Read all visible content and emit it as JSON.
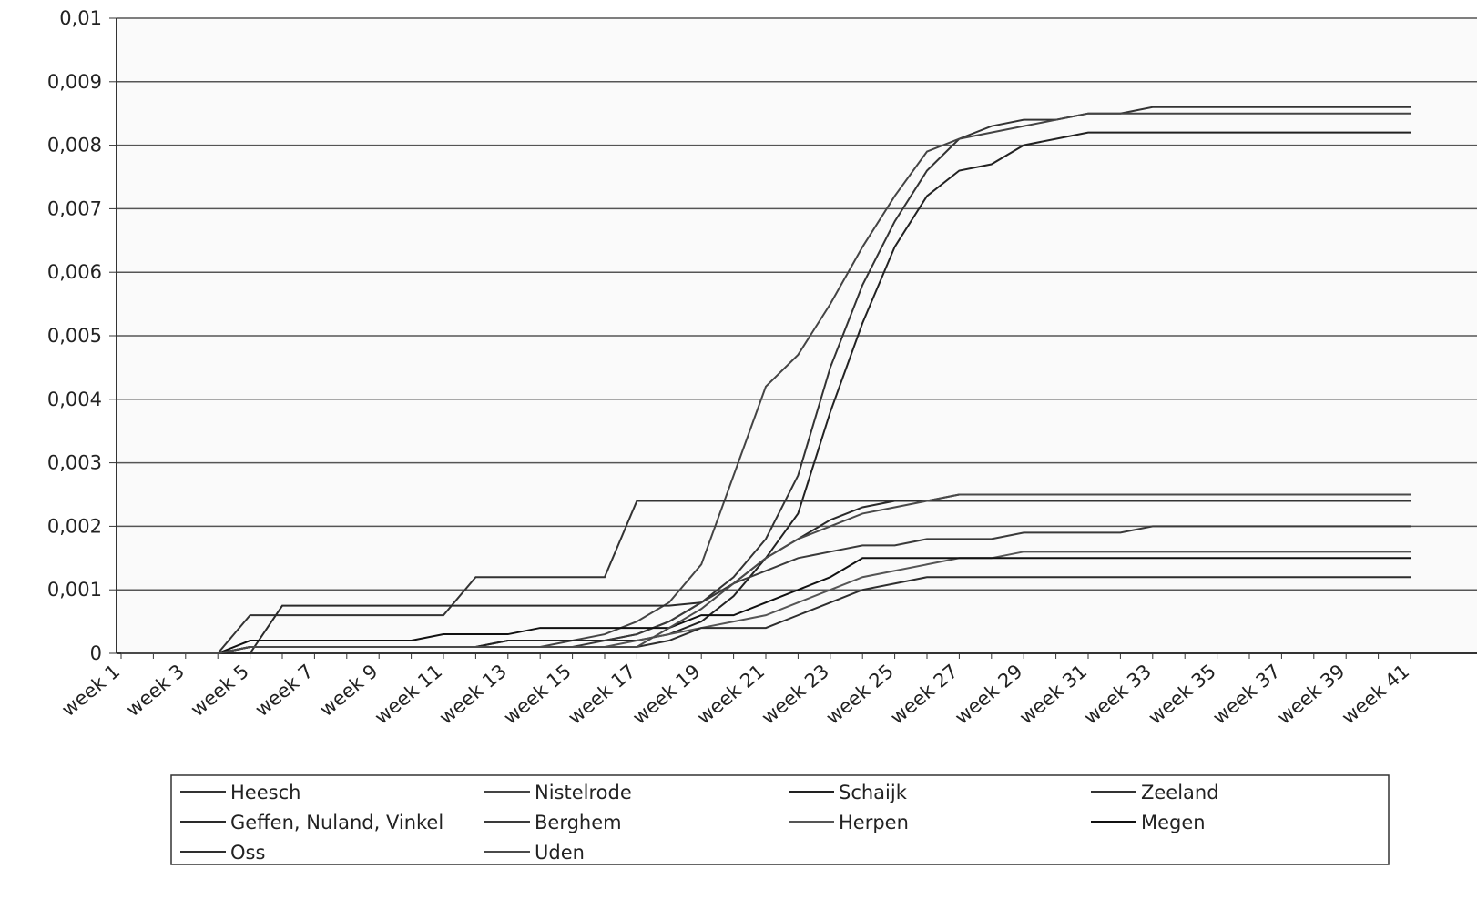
{
  "chart_data": {
    "type": "line",
    "categories": [
      "week 1",
      null,
      "week 3",
      null,
      "week 5",
      null,
      "week 7",
      null,
      "week 9",
      null,
      "week 11",
      null,
      "week 13",
      null,
      "week 15",
      null,
      "week 17",
      null,
      "week 19",
      null,
      "week 21",
      null,
      "week 23",
      null,
      "week 25",
      null,
      "week 27",
      null,
      "week 29",
      null,
      "week 31",
      null,
      "week 33",
      null,
      "week 35",
      null,
      "week 37",
      null,
      "week 39",
      null,
      "week 41"
    ],
    "ylim": [
      0,
      0.01
    ],
    "yticks": [
      0,
      {
        "value": 0.001,
        "label": "0,001"
      },
      {
        "value": 0.002,
        "label": "0,002"
      },
      {
        "value": 0.003,
        "label": "0,003"
      },
      {
        "value": 0.004,
        "label": "0,004"
      },
      {
        "value": 0.005,
        "label": "0,005"
      },
      {
        "value": 0.006,
        "label": "0,006"
      },
      {
        "value": 0.007,
        "label": "0,007"
      },
      {
        "value": 0.008,
        "label": "0,008"
      },
      {
        "value": 0.009,
        "label": "0,009"
      },
      {
        "value": 0.01,
        "label": "0,01"
      }
    ],
    "grid": true,
    "series": [
      {
        "name": "Heesch",
        "color": "#333333",
        "values": [
          0,
          0,
          0,
          0,
          0.0001,
          0.0001,
          0.0001,
          0.0001,
          0.0001,
          0.0001,
          0.0001,
          0.0001,
          0.0002,
          0.0002,
          0.0002,
          0.0002,
          0.0003,
          0.0005,
          0.0008,
          0.0012,
          0.0018,
          0.0028,
          0.0045,
          0.0058,
          0.0068,
          0.0076,
          0.0081,
          0.0083,
          0.0084,
          0.0084,
          0.0085,
          0.0085,
          0.0086,
          0.0086,
          0.0086,
          0.0086,
          0.0086,
          0.0086,
          0.0086,
          0.0086,
          0.0086
        ]
      },
      {
        "name": "Nistelrode",
        "color": "#444444",
        "values": [
          0,
          0,
          0,
          0,
          0.0001,
          0.0001,
          0.0001,
          0.0001,
          0.0001,
          0.0001,
          0.0001,
          0.0001,
          0.0001,
          0.0001,
          0.0002,
          0.0003,
          0.0005,
          0.0008,
          0.0014,
          0.0028,
          0.0042,
          0.0047,
          0.0055,
          0.0064,
          0.0072,
          0.0079,
          0.0081,
          0.0082,
          0.0083,
          0.0084,
          0.0085,
          0.0085,
          0.0085,
          0.0085,
          0.0085,
          0.0085,
          0.0085,
          0.0085,
          0.0085,
          0.0085,
          0.0085
        ]
      },
      {
        "name": "Schaijk",
        "color": "#222222",
        "values": [
          0,
          0,
          0,
          0,
          0.0001,
          0.0001,
          0.0001,
          0.0001,
          0.0001,
          0.0001,
          0.0001,
          0.0001,
          0.0002,
          0.0002,
          0.0002,
          0.0002,
          0.0002,
          0.0003,
          0.0005,
          0.0009,
          0.0015,
          0.0022,
          0.0038,
          0.0052,
          0.0064,
          0.0072,
          0.0076,
          0.0077,
          0.008,
          0.0081,
          0.0082,
          0.0082,
          0.0082,
          0.0082,
          0.0082,
          0.0082,
          0.0082,
          0.0082,
          0.0082,
          0.0082,
          0.0082
        ]
      },
      {
        "name": "Zeeland",
        "color": "#333333",
        "values": [
          0,
          0,
          0,
          0,
          0.0006,
          0.0006,
          0.0006,
          0.0006,
          0.0006,
          0.0006,
          0.0006,
          0.0012,
          0.0012,
          0.0012,
          0.0012,
          0.0012,
          0.0024,
          0.0024,
          0.0024,
          0.0024,
          0.0024,
          0.0024,
          0.0024,
          0.0024,
          0.0024,
          0.0024,
          0.0024,
          0.0024,
          0.0024,
          0.0024,
          0.0024,
          0.0024,
          0.0024,
          0.0024,
          0.0024,
          0.0024,
          0.0024,
          0.0024,
          0.0024,
          0.0024,
          0.0024
        ]
      },
      {
        "name": "Geffen, Nuland, Vinkel",
        "color": "#2a2a2a",
        "values": [
          0,
          0,
          0,
          0,
          0,
          0.00075,
          0.00075,
          0.00075,
          0.00075,
          0.00075,
          0.00075,
          0.00075,
          0.00075,
          0.00075,
          0.00075,
          0.00075,
          0.00075,
          0.00075,
          0.0008,
          0.0011,
          0.0015,
          0.0018,
          0.0021,
          0.0023,
          0.0024,
          0.0024,
          0.0025,
          0.0025,
          0.0025,
          0.0025,
          0.0025,
          0.0025,
          0.0025,
          0.0025,
          0.0025,
          0.0025,
          0.0025,
          0.0025,
          0.0025,
          0.0025,
          0.0025
        ]
      },
      {
        "name": "Berghem",
        "color": "#3a3a3a",
        "values": [
          0,
          0,
          0,
          0,
          0.0001,
          0.0001,
          0.0001,
          0.0001,
          0.0001,
          0.0001,
          0.0001,
          0.0001,
          0.0001,
          0.0001,
          0.0001,
          0.0002,
          0.0003,
          0.0005,
          0.0008,
          0.0011,
          0.0013,
          0.0015,
          0.0016,
          0.0017,
          0.0017,
          0.0018,
          0.0018,
          0.0018,
          0.0019,
          0.0019,
          0.0019,
          0.0019,
          0.002,
          0.002,
          0.002,
          0.002,
          0.002,
          0.002,
          0.002,
          0.002,
          0.002
        ]
      },
      {
        "name": "Herpen",
        "color": "#555555",
        "values": [
          0,
          0,
          0,
          0,
          0.0001,
          0.0001,
          0.0001,
          0.0001,
          0.0001,
          0.0001,
          0.0001,
          0.0001,
          0.0001,
          0.0001,
          0.0001,
          0.0001,
          0.0002,
          0.0003,
          0.0004,
          0.0005,
          0.0006,
          0.0008,
          0.001,
          0.0012,
          0.0013,
          0.0014,
          0.0015,
          0.0015,
          0.0016,
          0.0016,
          0.0016,
          0.0016,
          0.0016,
          0.0016,
          0.0016,
          0.0016,
          0.0016,
          0.0016,
          0.0016,
          0.0016,
          0.0016
        ]
      },
      {
        "name": "Megen",
        "color": "#111111",
        "values": [
          0,
          0,
          0,
          0,
          0.0002,
          0.0002,
          0.0002,
          0.0002,
          0.0002,
          0.0002,
          0.0003,
          0.0003,
          0.0003,
          0.0004,
          0.0004,
          0.0004,
          0.0004,
          0.0004,
          0.0006,
          0.0006,
          0.0008,
          0.001,
          0.0012,
          0.0015,
          0.0015,
          0.0015,
          0.0015,
          0.0015,
          0.0015,
          0.0015,
          0.0015,
          0.0015,
          0.0015,
          0.0015,
          0.0015,
          0.0015,
          0.0015,
          0.0015,
          0.0015,
          0.0015,
          0.0015
        ]
      },
      {
        "name": "Oss",
        "color": "#2e2e2e",
        "values": [
          0,
          0,
          0,
          0,
          0.0001,
          0.0001,
          0.0001,
          0.0001,
          0.0001,
          0.0001,
          0.0001,
          0.0001,
          0.0001,
          0.0001,
          0.0001,
          0.0001,
          0.0001,
          0.0002,
          0.0004,
          0.0004,
          0.0004,
          0.0006,
          0.0008,
          0.001,
          0.0011,
          0.0012,
          0.0012,
          0.0012,
          0.0012,
          0.0012,
          0.0012,
          0.0012,
          0.0012,
          0.0012,
          0.0012,
          0.0012,
          0.0012,
          0.0012,
          0.0012,
          0.0012,
          0.0012
        ]
      },
      {
        "name": "Uden",
        "color": "#4a4a4a",
        "values": [
          0,
          0,
          0,
          0,
          0.0001,
          0.0001,
          0.0001,
          0.0001,
          0.0001,
          0.0001,
          0.0001,
          0.0001,
          0.0001,
          0.0001,
          0.0001,
          0.0001,
          0.0001,
          0.0004,
          0.0007,
          0.0011,
          0.0015,
          0.0018,
          0.002,
          0.0022,
          0.0023,
          0.0024,
          0.0025,
          0.0025,
          0.0025,
          0.0025,
          0.0025,
          0.0025,
          0.0025,
          0.0025,
          0.0025,
          0.0025,
          0.0025,
          0.0025,
          0.0025,
          0.0025,
          0.0025
        ]
      }
    ]
  }
}
